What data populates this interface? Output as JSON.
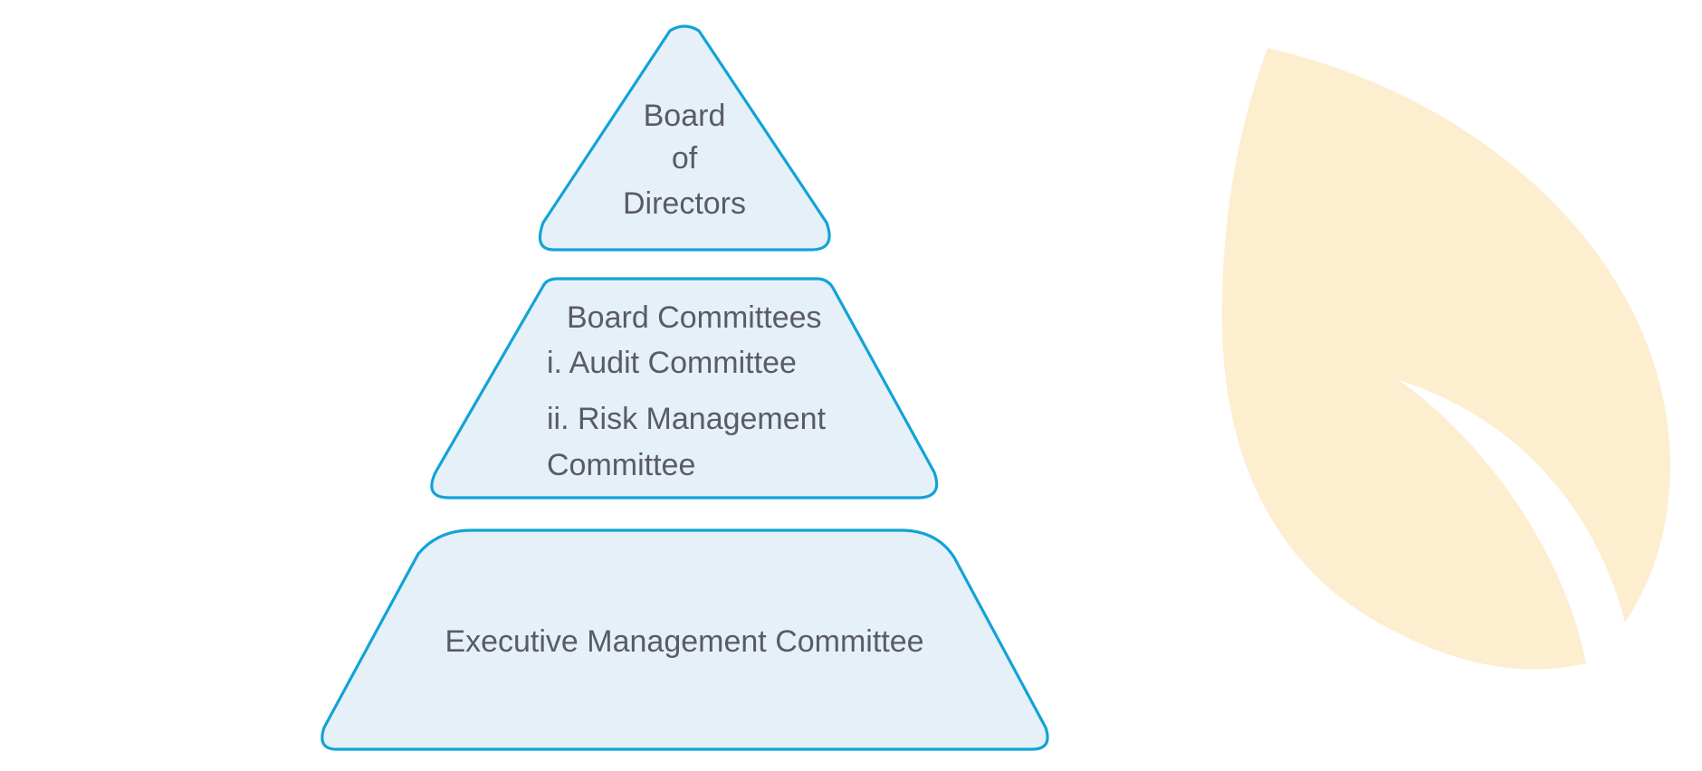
{
  "diagram": {
    "type": "pyramid",
    "tiers": [
      {
        "id": "board-of-directors",
        "lines": [
          "Board",
          "of",
          "Directors"
        ]
      },
      {
        "id": "board-committees",
        "title": "Board Committees",
        "items": [
          "i. Audit Committee",
          "ii. Risk Management",
          "Committee"
        ]
      },
      {
        "id": "executive-management-committee",
        "lines": [
          "Executive Management Committee"
        ]
      }
    ]
  },
  "colors": {
    "tier_fill": "#e6f0f9",
    "tier_outline": "#12a3d6",
    "text": "#5a5c61",
    "leaf": "#fdeed0"
  },
  "decoration": {
    "leaf_icon": "leaf-icon"
  }
}
